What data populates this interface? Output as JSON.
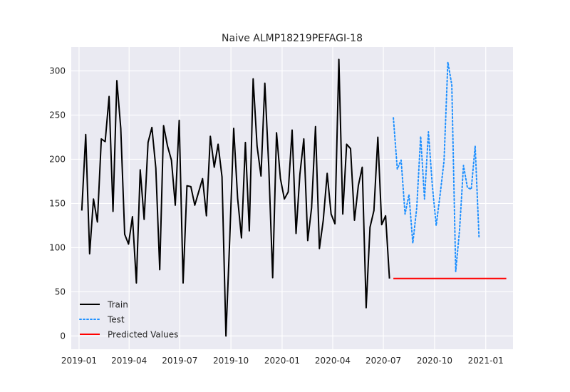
{
  "chart_data": {
    "type": "line",
    "title": "Naive ALMP18219PEFAGI-18",
    "xlabel": "",
    "ylabel": "",
    "grid": true,
    "legend_position": "lower-left",
    "xlim": [
      "2018-12-18",
      "2021-02-19"
    ],
    "ylim": [
      -15,
      327
    ],
    "x_ticks": [
      {
        "date": "2019-01-01",
        "label": "2019-01"
      },
      {
        "date": "2019-04-01",
        "label": "2019-04"
      },
      {
        "date": "2019-07-01",
        "label": "2019-07"
      },
      {
        "date": "2019-10-01",
        "label": "2019-10"
      },
      {
        "date": "2020-01-01",
        "label": "2020-01"
      },
      {
        "date": "2020-04-01",
        "label": "2020-04"
      },
      {
        "date": "2020-07-01",
        "label": "2020-07"
      },
      {
        "date": "2020-10-01",
        "label": "2020-10"
      },
      {
        "date": "2021-01-01",
        "label": "2021-01"
      }
    ],
    "y_ticks": [
      0,
      50,
      100,
      150,
      200,
      250,
      300
    ],
    "colors": {
      "background": "#eaeaf2",
      "grid": "#ffffff",
      "train": "#000000",
      "test": "#1e90ff",
      "predicted": "#ff0000",
      "text": "#262626"
    },
    "series": [
      {
        "name": "Train",
        "style": "solid",
        "color": "#000000",
        "x": [
          "2019-01-06",
          "2019-01-13",
          "2019-01-20",
          "2019-01-27",
          "2019-02-03",
          "2019-02-10",
          "2019-02-17",
          "2019-02-24",
          "2019-03-03",
          "2019-03-10",
          "2019-03-17",
          "2019-03-24",
          "2019-03-31",
          "2019-04-07",
          "2019-04-14",
          "2019-04-21",
          "2019-04-28",
          "2019-05-05",
          "2019-05-12",
          "2019-05-19",
          "2019-05-26",
          "2019-06-02",
          "2019-06-09",
          "2019-06-16",
          "2019-06-23",
          "2019-06-30",
          "2019-07-07",
          "2019-07-14",
          "2019-07-21",
          "2019-07-28",
          "2019-08-04",
          "2019-08-11",
          "2019-08-18",
          "2019-08-25",
          "2019-09-01",
          "2019-09-08",
          "2019-09-15",
          "2019-09-22",
          "2019-09-29",
          "2019-10-06",
          "2019-10-13",
          "2019-10-20",
          "2019-10-27",
          "2019-11-03",
          "2019-11-10",
          "2019-11-17",
          "2019-11-24",
          "2019-12-01",
          "2019-12-08",
          "2019-12-15",
          "2019-12-22",
          "2019-12-29",
          "2020-01-05",
          "2020-01-12",
          "2020-01-19",
          "2020-01-26",
          "2020-02-02",
          "2020-02-09",
          "2020-02-16",
          "2020-02-23",
          "2020-03-01",
          "2020-03-08",
          "2020-03-15",
          "2020-03-22",
          "2020-03-29",
          "2020-04-05",
          "2020-04-12",
          "2020-04-19",
          "2020-04-26",
          "2020-05-03",
          "2020-05-10",
          "2020-05-17",
          "2020-05-24",
          "2020-05-31",
          "2020-06-07",
          "2020-06-14",
          "2020-06-21",
          "2020-06-28",
          "2020-07-05",
          "2020-07-12"
        ],
        "values": [
          142,
          228,
          93,
          155,
          129,
          223,
          220,
          271,
          141,
          289,
          235,
          115,
          104,
          135,
          60,
          188,
          132,
          219,
          236,
          190,
          75,
          238,
          215,
          199,
          148,
          244,
          60,
          170,
          169,
          148,
          163,
          178,
          136,
          226,
          191,
          217,
          180,
          0,
          111,
          235,
          156,
          111,
          219,
          119,
          291,
          215,
          181,
          286,
          192,
          66,
          230,
          178,
          155,
          163,
          233,
          116,
          183,
          223,
          108,
          145,
          237,
          99,
          131,
          184,
          138,
          127,
          313,
          138,
          217,
          212,
          131,
          170,
          191,
          32,
          123,
          142,
          225,
          126,
          136,
          65
        ]
      },
      {
        "name": "Test",
        "style": "dotted",
        "color": "#1e90ff",
        "x": [
          "2020-07-19",
          "2020-07-26",
          "2020-08-02",
          "2020-08-09",
          "2020-08-16",
          "2020-08-23",
          "2020-08-30",
          "2020-09-06",
          "2020-09-13",
          "2020-09-20",
          "2020-09-27",
          "2020-10-04",
          "2020-10-11",
          "2020-10-18",
          "2020-10-25",
          "2020-11-01",
          "2020-11-08",
          "2020-11-15",
          "2020-11-22",
          "2020-11-29",
          "2020-12-06",
          "2020-12-13",
          "2020-12-20",
          "2020-12-27"
        ],
        "values": [
          247,
          189,
          199,
          138,
          160,
          105,
          145,
          226,
          155,
          231,
          170,
          125,
          160,
          198,
          310,
          284,
          73,
          120,
          193,
          168,
          166,
          215,
          110,
          null
        ]
      },
      {
        "name": "Predicted Values",
        "style": "solid",
        "color": "#ff0000",
        "x": [
          "2020-07-19",
          "2021-02-07"
        ],
        "values": [
          65,
          65
        ]
      }
    ]
  }
}
